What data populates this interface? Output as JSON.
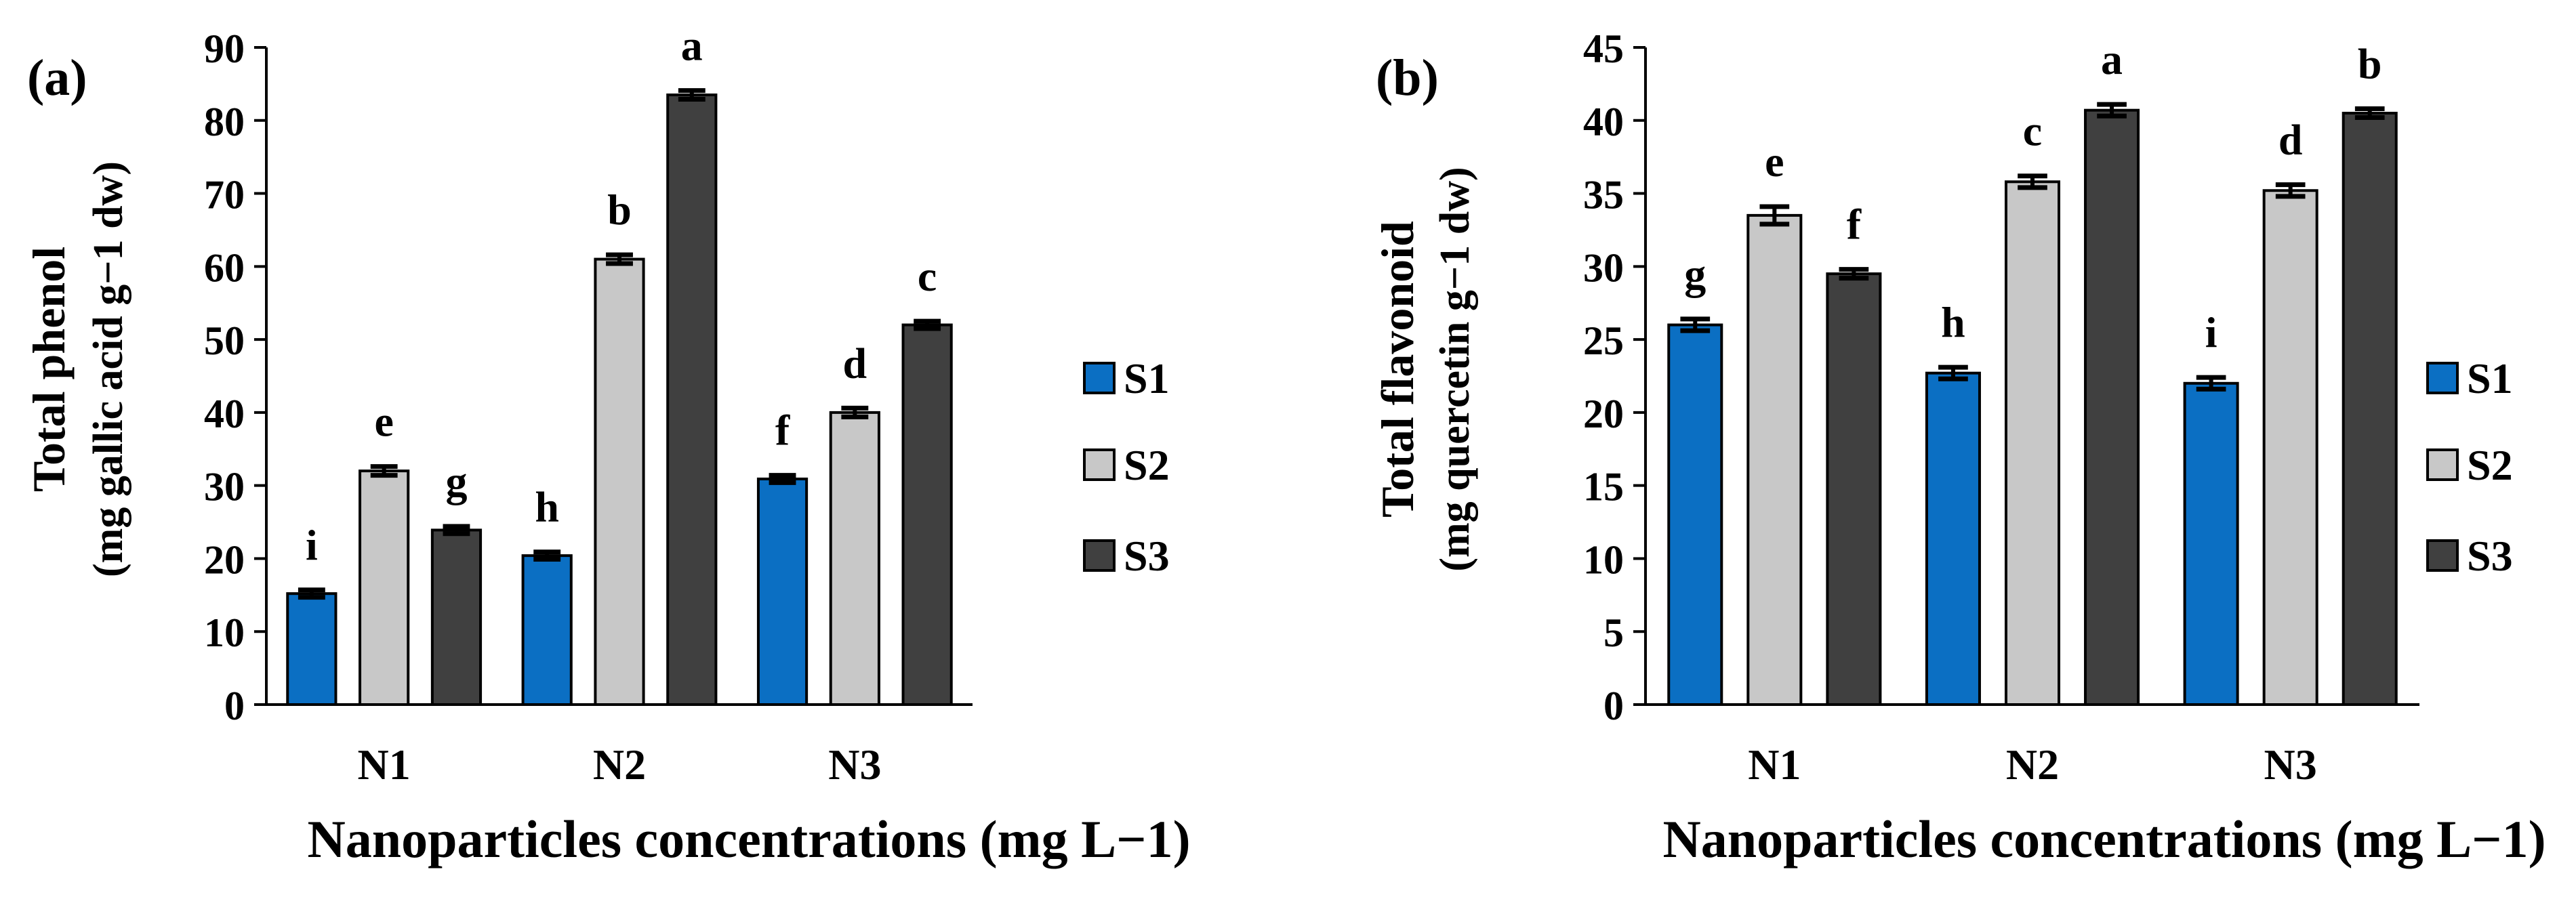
{
  "chart_data": [
    {
      "type": "bar",
      "panel_label": "(a)",
      "title": "",
      "xlabel": "Nanoparticles concentrations (mg L−1)",
      "ylabel_line1": "Total phenol",
      "ylabel_line2": "(mg gallic acid  g−1 dw)",
      "ylim": [
        0,
        90
      ],
      "yticks": [
        0,
        10,
        20,
        30,
        40,
        50,
        60,
        70,
        80,
        90
      ],
      "categories": [
        "N1",
        "N2",
        "N3"
      ],
      "legend_position": "right",
      "grid": false,
      "series": [
        {
          "name": "S1",
          "values": [
            15.2,
            20.4,
            30.9
          ],
          "errors": [
            0.5,
            0.5,
            0.5
          ],
          "letters": [
            "i",
            "h",
            "f"
          ]
        },
        {
          "name": "S2",
          "values": [
            32.0,
            61.0,
            40.0
          ],
          "errors": [
            0.6,
            0.6,
            0.6
          ],
          "letters": [
            "e",
            "b",
            "d"
          ]
        },
        {
          "name": "S3",
          "values": [
            23.9,
            83.5,
            52.0
          ],
          "errors": [
            0.5,
            0.6,
            0.5
          ],
          "letters": [
            "g",
            "a",
            "c"
          ]
        }
      ]
    },
    {
      "type": "bar",
      "panel_label": "(b)",
      "title": "",
      "xlabel": "Nanoparticles concentrations (mg L−1)",
      "ylabel_line1": "Total flavonoid",
      "ylabel_line2": "(mg quercetin g−1 dw)",
      "ylim": [
        0,
        45
      ],
      "yticks": [
        0,
        5,
        10,
        15,
        20,
        25,
        30,
        35,
        40,
        45
      ],
      "categories": [
        "N1",
        "N2",
        "N3"
      ],
      "legend_position": "right",
      "grid": false,
      "series": [
        {
          "name": "S1",
          "values": [
            26.0,
            22.7,
            22.0
          ],
          "errors": [
            0.4,
            0.4,
            0.4
          ],
          "letters": [
            "g",
            "h",
            "i"
          ]
        },
        {
          "name": "S2",
          "values": [
            33.5,
            35.8,
            35.2
          ],
          "errors": [
            0.6,
            0.4,
            0.4
          ],
          "letters": [
            "e",
            "c",
            "d"
          ]
        },
        {
          "name": "S3",
          "values": [
            29.5,
            40.7,
            40.5
          ],
          "errors": [
            0.3,
            0.4,
            0.3
          ],
          "letters": [
            "f",
            "a",
            "b"
          ]
        }
      ]
    }
  ],
  "colors": {
    "S1": "#0b6fc3",
    "S2": "#c8c8c8",
    "S3": "#404040"
  }
}
